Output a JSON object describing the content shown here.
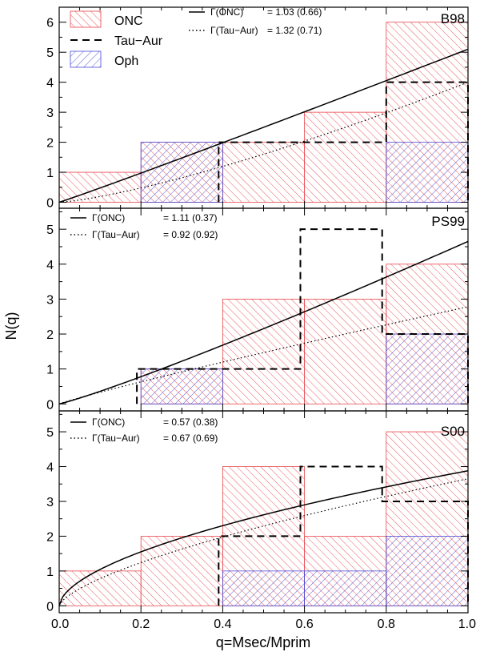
{
  "figure": {
    "ylabel": "N(q)",
    "xlabel": "q=Msec/Mprim",
    "xticks": [
      "0.0",
      "0.2",
      "0.4",
      "0.6",
      "0.8",
      "1.0"
    ]
  },
  "colors": {
    "onc": "#e8454a",
    "oph": "#4a4ad6",
    "tau": "#000000",
    "axis": "#000000"
  },
  "legend": {
    "onc": "ONC",
    "tau": "Tau−Aur",
    "oph": "Oph"
  },
  "chart_data": [
    {
      "type": "bar",
      "panel_label": "B98",
      "x_range": [
        0,
        1
      ],
      "ylim": [
        -0.2,
        6.5
      ],
      "yticks": [
        "0",
        "1",
        "2",
        "3",
        "4",
        "5",
        "6"
      ],
      "bin_edges": [
        0,
        0.2,
        0.4,
        0.6,
        0.8,
        1.0
      ],
      "series": [
        {
          "name": "ONC",
          "style": "red hatched",
          "edges": [
            0,
            0.2,
            0.4,
            0.6,
            0.8,
            1.0
          ],
          "values": [
            1,
            2,
            2,
            3,
            6
          ]
        },
        {
          "name": "Oph",
          "style": "blue hatched",
          "edges": [
            0.2,
            0.4,
            0.6,
            0.8,
            1.0
          ],
          "values": [
            2,
            0,
            0,
            2
          ]
        },
        {
          "name": "Tau-Aur",
          "style": "dashed",
          "edges": [
            0.39,
            0.6,
            0.8,
            1.0
          ],
          "values": [
            2,
            2,
            4
          ]
        }
      ],
      "fits": [
        {
          "label": "Γ(ONC)",
          "value": "= 1.03 (0.66)",
          "gamma": 1.03,
          "scale": 5.1,
          "style": "solid"
        },
        {
          "label": "Γ(Tau−Aur)",
          "value": "= 1.32 (0.71)",
          "gamma": 1.32,
          "scale": 4.0,
          "style": "dotted"
        }
      ]
    },
    {
      "type": "bar",
      "panel_label": "PS99",
      "x_range": [
        0,
        1
      ],
      "ylim": [
        -0.2,
        5.6
      ],
      "yticks": [
        "0",
        "1",
        "2",
        "3",
        "4",
        "5"
      ],
      "series": [
        {
          "name": "ONC",
          "style": "red hatched",
          "edges": [
            0.2,
            0.4,
            0.6,
            0.8,
            1.0
          ],
          "values": [
            1,
            3,
            3,
            4
          ]
        },
        {
          "name": "Oph",
          "style": "blue hatched",
          "edges": [
            0.2,
            0.4,
            0.6,
            0.8,
            1.0
          ],
          "values": [
            1,
            0,
            0,
            2
          ]
        },
        {
          "name": "Tau-Aur",
          "style": "dashed",
          "edges": [
            0.19,
            0.59,
            0.79,
            1.0
          ],
          "values": [
            1,
            5,
            2
          ]
        }
      ],
      "fits": [
        {
          "label": "Γ(ONC)",
          "value": "= 1.11 (0.37)",
          "gamma": 1.11,
          "scale": 4.65,
          "style": "solid"
        },
        {
          "label": "Γ(Tau−Aur)",
          "value": "= 0.92 (0.92)",
          "gamma": 0.92,
          "scale": 2.78,
          "style": "dotted"
        }
      ]
    },
    {
      "type": "bar",
      "panel_label": "S00",
      "x_range": [
        0,
        1
      ],
      "ylim": [
        -0.2,
        5.6
      ],
      "yticks": [
        "0",
        "1",
        "2",
        "3",
        "4",
        "5"
      ],
      "series": [
        {
          "name": "ONC",
          "style": "red hatched",
          "edges": [
            0,
            0.2,
            0.4,
            0.6,
            0.8,
            1.0
          ],
          "values": [
            1,
            2,
            4,
            2,
            5
          ]
        },
        {
          "name": "Oph",
          "style": "blue hatched",
          "edges": [
            0.4,
            0.6,
            0.8,
            1.0
          ],
          "values": [
            1,
            1,
            2
          ]
        },
        {
          "name": "Tau-Aur",
          "style": "dashed",
          "edges": [
            0.39,
            0.59,
            0.79,
            1.0
          ],
          "values": [
            2,
            4,
            3
          ]
        }
      ],
      "fits": [
        {
          "label": "Γ(ONC)",
          "value": "= 0.57 (0.38)",
          "gamma": 0.57,
          "scale": 3.88,
          "style": "solid"
        },
        {
          "label": "Γ(Tau−Aur)",
          "value": "= 0.67 (0.69)",
          "gamma": 0.67,
          "scale": 3.65,
          "style": "dotted"
        }
      ]
    }
  ]
}
